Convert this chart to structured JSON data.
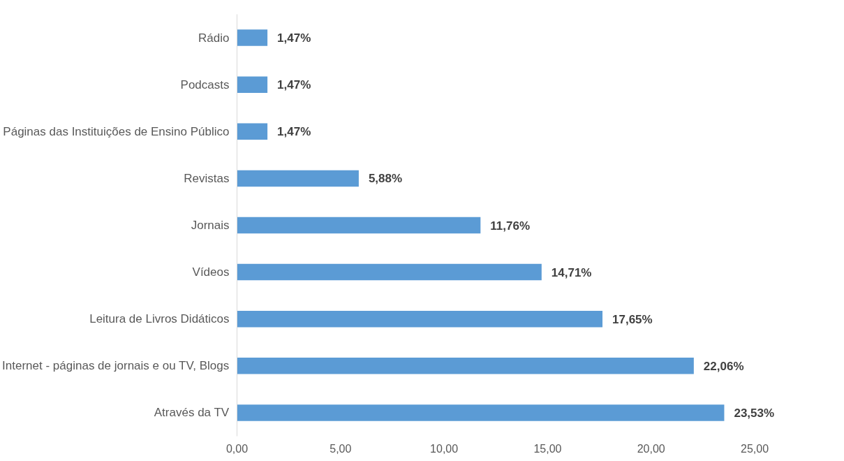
{
  "chart_data": {
    "type": "bar",
    "orientation": "horizontal",
    "categories": [
      "Rádio",
      "Podcasts",
      "Páginas das Instituições de Ensino Público",
      "Revistas",
      "Jornais",
      "Vídeos",
      "Leitura de Livros Didáticos",
      "Internet - páginas de jornais e ou TV, Blogs",
      "Através da TV"
    ],
    "values": [
      1.47,
      1.47,
      1.47,
      5.88,
      11.76,
      14.71,
      17.65,
      22.06,
      23.53
    ],
    "value_labels": [
      "1,47%",
      "1,47%",
      "1,47%",
      "5,88%",
      "11,76%",
      "14,71%",
      "17,65%",
      "22,06%",
      "23,53%"
    ],
    "color": "#5b9bd5",
    "xlim": [
      0,
      25
    ],
    "xticks": [
      {
        "value": 0,
        "label": "0,00"
      },
      {
        "value": 5,
        "label": "5,00"
      },
      {
        "value": 10,
        "label": "10,00"
      },
      {
        "value": 15,
        "label": "15,00"
      },
      {
        "value": 20,
        "label": "20,00"
      },
      {
        "value": 25,
        "label": "25,00"
      }
    ],
    "grid": false
  }
}
